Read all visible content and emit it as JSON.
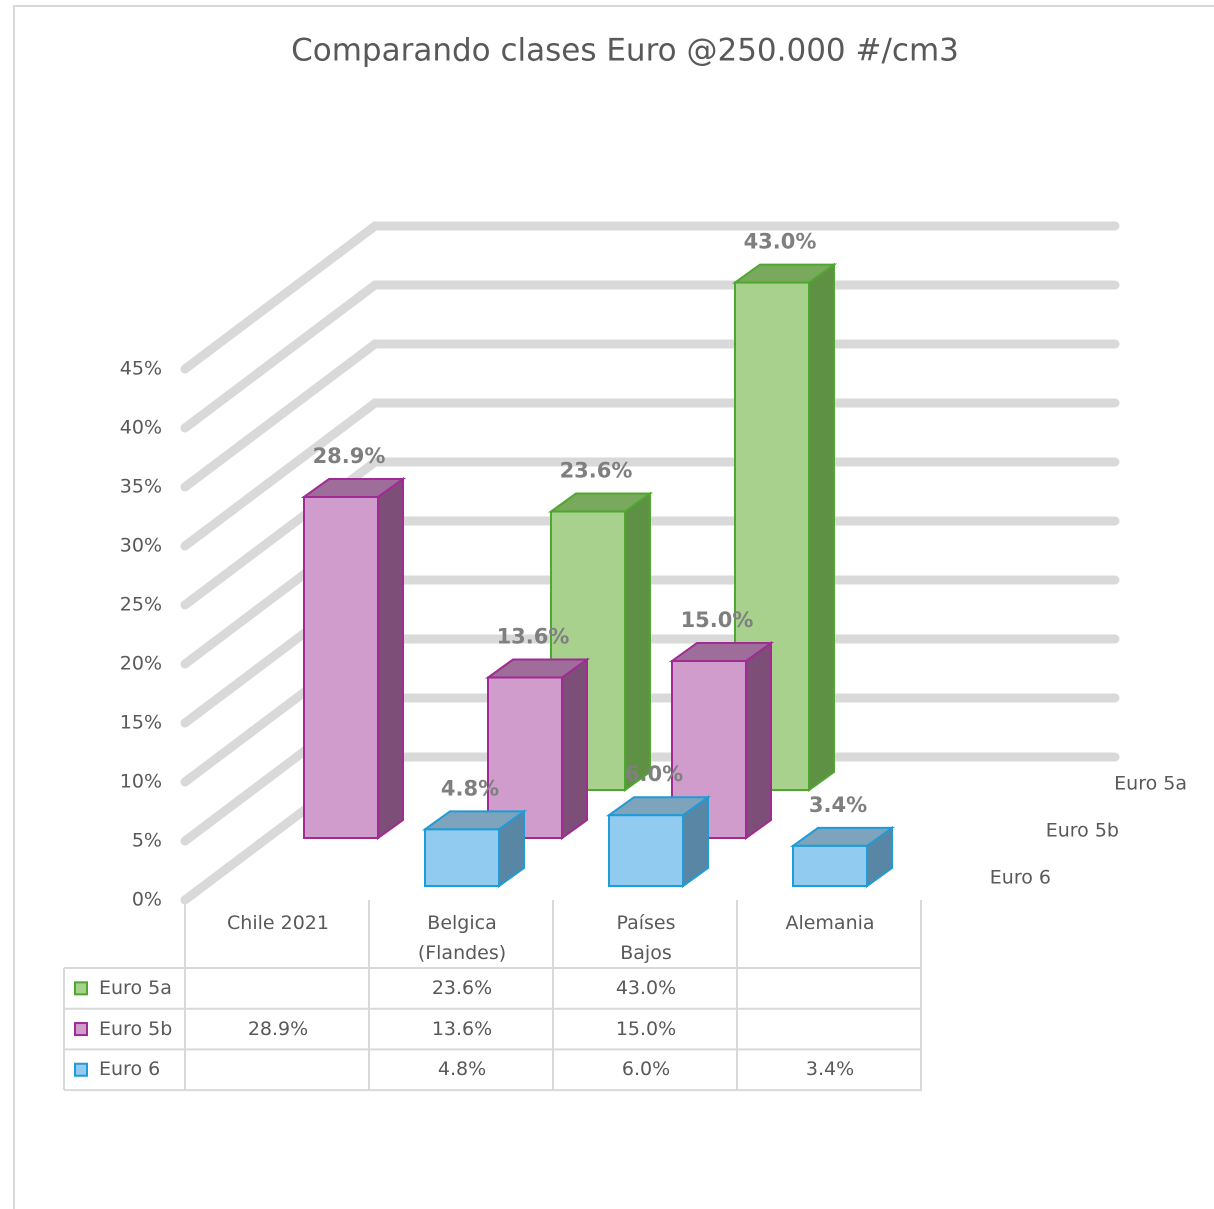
{
  "chart_data": {
    "type": "bar3d",
    "title": "Comparando clases Euro  @250.000 #/cm3",
    "categories": [
      "Chile 2021",
      "Belgica (Flandes)",
      "Países Bajos",
      "Alemania"
    ],
    "series": [
      {
        "name": "Euro 5a",
        "color": "#a9d18e",
        "edge": "#4ea72e",
        "side": "#5f9145",
        "top": "#79a95d",
        "values": [
          null,
          23.6,
          43.0,
          null
        ],
        "value_labels": [
          null,
          "23.6%",
          "43.0%",
          null
        ]
      },
      {
        "name": "Euro 5b",
        "color": "#cf9ccb",
        "edge": "#a02b93",
        "side": "#7d4f78",
        "top": "#9e6d99",
        "values": [
          28.9,
          13.6,
          15.0,
          null
        ],
        "value_labels": [
          "28.9%",
          "13.6%",
          "15.0%",
          null
        ]
      },
      {
        "name": "Euro 6",
        "color": "#92cbf0",
        "edge": "#1f9bd6",
        "side": "#5a86a6",
        "top": "#7ea3bd",
        "values": [
          null,
          4.8,
          6.0,
          3.4
        ],
        "value_labels": [
          null,
          "4.8%",
          "6.0%",
          "3.4%"
        ]
      }
    ],
    "ylim": [
      0,
      45
    ],
    "yticks": [
      {
        "value": 0,
        "label": "0%"
      },
      {
        "value": 5,
        "label": "5%"
      },
      {
        "value": 10,
        "label": "10%"
      },
      {
        "value": 15,
        "label": "15%"
      },
      {
        "value": 20,
        "label": "20%"
      },
      {
        "value": 25,
        "label": "25%"
      },
      {
        "value": 30,
        "label": "30%"
      },
      {
        "value": 35,
        "label": "35%"
      },
      {
        "value": 40,
        "label": "40%"
      },
      {
        "value": 45,
        "label": "45%"
      }
    ],
    "grid": true
  }
}
